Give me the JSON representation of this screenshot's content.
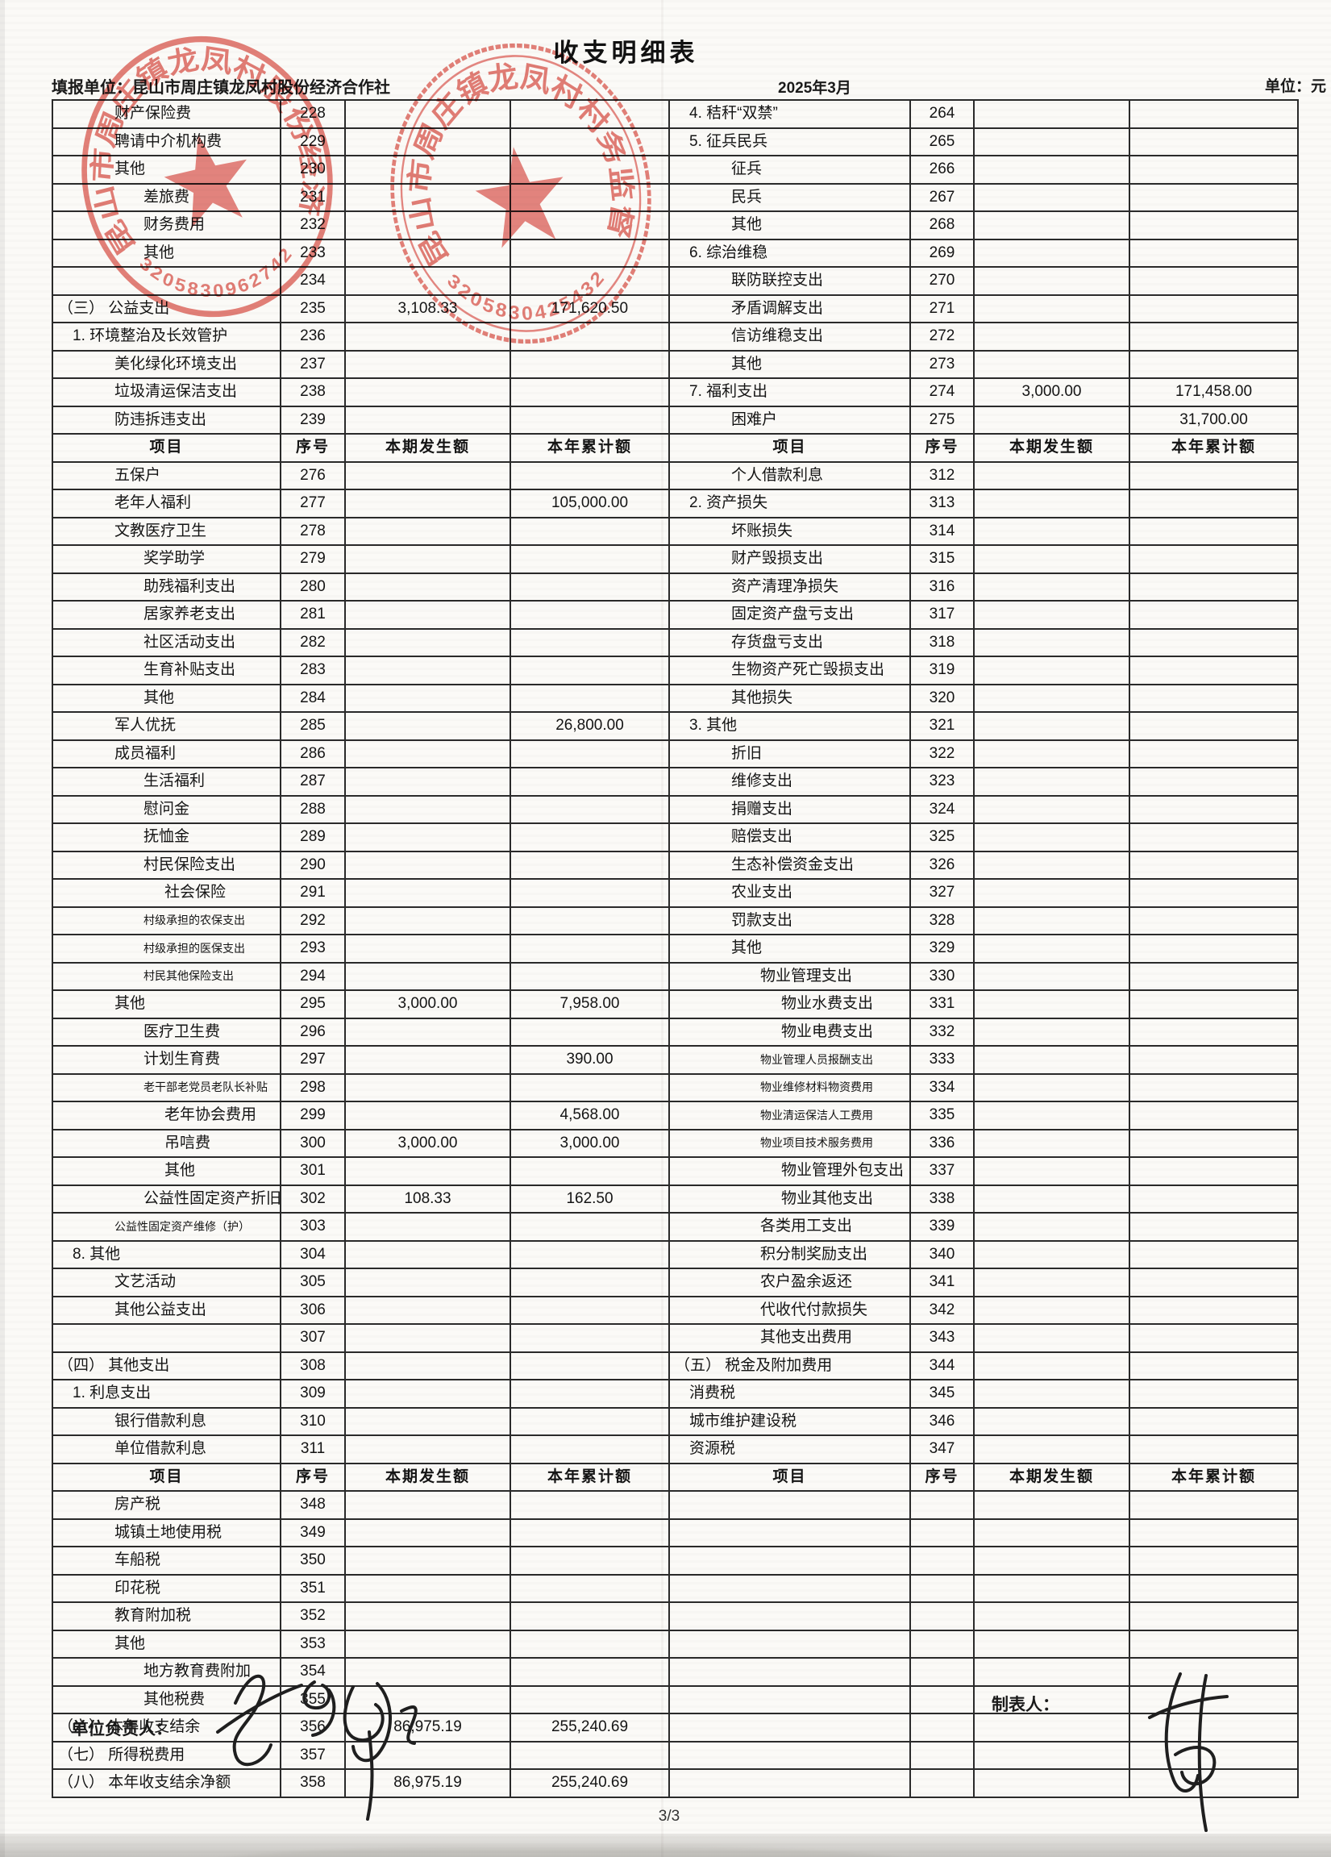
{
  "page": {
    "title": "收支明细表",
    "report_unit": "填报单位：昆山市周庄镇龙凤村股份经济合作社",
    "period": "2025年3月",
    "unit_label": "单位：元",
    "page_number": "3/3",
    "footer": {
      "manager_label": "单位负责人：",
      "preparer_label": "制表人："
    }
  },
  "table": {
    "col_headers": [
      "项目",
      "序号",
      "本期发生额",
      "本年累计额"
    ],
    "rows": [
      {
        "l": [
          "财产保险费",
          2,
          "228",
          "",
          ""
        ],
        "r": [
          "4. 秸秆“双禁”",
          1,
          "264",
          "",
          ""
        ]
      },
      {
        "l": [
          "聘请中介机构费",
          2,
          "229",
          "",
          ""
        ],
        "r": [
          "5. 征兵民兵",
          1,
          "265",
          "",
          ""
        ]
      },
      {
        "l": [
          "其他",
          2,
          "230",
          "",
          ""
        ],
        "r": [
          "征兵",
          2,
          "266",
          "",
          ""
        ]
      },
      {
        "l": [
          "差旅费",
          3,
          "231",
          "",
          ""
        ],
        "r": [
          "民兵",
          2,
          "267",
          "",
          ""
        ]
      },
      {
        "l": [
          "财务费用",
          3,
          "232",
          "",
          ""
        ],
        "r": [
          "其他",
          2,
          "268",
          "",
          ""
        ]
      },
      {
        "l": [
          "其他",
          3,
          "233",
          "",
          ""
        ],
        "r": [
          "6. 综治维稳",
          1,
          "269",
          "",
          ""
        ]
      },
      {
        "l": [
          "",
          0,
          "234",
          "",
          ""
        ],
        "r": [
          "联防联控支出",
          2,
          "270",
          "",
          ""
        ]
      },
      {
        "l": [
          "（三） 公益支出",
          0,
          "235",
          "3,108.33",
          "171,620.50"
        ],
        "r": [
          "矛盾调解支出",
          2,
          "271",
          "",
          ""
        ]
      },
      {
        "l": [
          "1. 环境整治及长效管护",
          1,
          "236",
          "",
          ""
        ],
        "r": [
          "信访维稳支出",
          2,
          "272",
          "",
          ""
        ]
      },
      {
        "l": [
          "美化绿化环境支出",
          2,
          "237",
          "",
          ""
        ],
        "r": [
          "其他",
          2,
          "273",
          "",
          ""
        ]
      },
      {
        "l": [
          "垃圾清运保洁支出",
          2,
          "238",
          "",
          ""
        ],
        "r": [
          "7. 福利支出",
          1,
          "274",
          "3,000.00",
          "171,458.00"
        ]
      },
      {
        "l": [
          "防违拆违支出",
          2,
          "239",
          "",
          ""
        ],
        "r": [
          "困难户",
          2,
          "275",
          "",
          "31,700.00"
        ]
      },
      {
        "h": 1
      },
      {
        "l": [
          "五保户",
          2,
          "276",
          "",
          ""
        ],
        "r": [
          "个人借款利息",
          2,
          "312",
          "",
          ""
        ]
      },
      {
        "l": [
          "老年人福利",
          2,
          "277",
          "",
          "105,000.00"
        ],
        "r": [
          "2. 资产损失",
          1,
          "313",
          "",
          ""
        ]
      },
      {
        "l": [
          "文教医疗卫生",
          2,
          "278",
          "",
          ""
        ],
        "r": [
          "坏账损失",
          2,
          "314",
          "",
          ""
        ]
      },
      {
        "l": [
          "奖学助学",
          3,
          "279",
          "",
          ""
        ],
        "r": [
          "财产毁损支出",
          2,
          "315",
          "",
          ""
        ]
      },
      {
        "l": [
          "助残福利支出",
          3,
          "280",
          "",
          ""
        ],
        "r": [
          "资产清理净损失",
          2,
          "316",
          "",
          ""
        ]
      },
      {
        "l": [
          "居家养老支出",
          3,
          "281",
          "",
          ""
        ],
        "r": [
          "固定资产盘亏支出",
          2,
          "317",
          "",
          ""
        ]
      },
      {
        "l": [
          "社区活动支出",
          3,
          "282",
          "",
          ""
        ],
        "r": [
          "存货盘亏支出",
          2,
          "318",
          "",
          ""
        ]
      },
      {
        "l": [
          "生育补贴支出",
          3,
          "283",
          "",
          ""
        ],
        "r": [
          "生物资产死亡毁损支出",
          2,
          "319",
          "",
          ""
        ]
      },
      {
        "l": [
          "其他",
          3,
          "284",
          "",
          ""
        ],
        "r": [
          "其他损失",
          2,
          "320",
          "",
          ""
        ]
      },
      {
        "l": [
          "军人优抚",
          2,
          "285",
          "",
          "26,800.00"
        ],
        "r": [
          "3. 其他",
          1,
          "321",
          "",
          ""
        ]
      },
      {
        "l": [
          "成员福利",
          2,
          "286",
          "",
          ""
        ],
        "r": [
          "折旧",
          2,
          "322",
          "",
          ""
        ]
      },
      {
        "l": [
          "生活福利",
          3,
          "287",
          "",
          ""
        ],
        "r": [
          "维修支出",
          2,
          "323",
          "",
          ""
        ]
      },
      {
        "l": [
          "慰问金",
          3,
          "288",
          "",
          ""
        ],
        "r": [
          "捐赠支出",
          2,
          "324",
          "",
          ""
        ]
      },
      {
        "l": [
          "抚恤金",
          3,
          "289",
          "",
          ""
        ],
        "r": [
          "赔偿支出",
          2,
          "325",
          "",
          ""
        ]
      },
      {
        "l": [
          "村民保险支出",
          3,
          "290",
          "",
          ""
        ],
        "r": [
          "生态补偿资金支出",
          2,
          "326",
          "",
          ""
        ]
      },
      {
        "l": [
          "社会保险",
          4,
          "291",
          "",
          ""
        ],
        "r": [
          "农业支出",
          2,
          "327",
          "",
          ""
        ]
      },
      {
        "l": [
          "村级承担的农保支出",
          3,
          "292",
          "",
          "",
          1
        ],
        "r": [
          "罚款支出",
          2,
          "328",
          "",
          ""
        ]
      },
      {
        "l": [
          "村级承担的医保支出",
          3,
          "293",
          "",
          "",
          1
        ],
        "r": [
          "其他",
          2,
          "329",
          "",
          ""
        ]
      },
      {
        "l": [
          "村民其他保险支出",
          3,
          "294",
          "",
          "",
          1
        ],
        "r": [
          "物业管理支出",
          3,
          "330",
          "",
          ""
        ]
      },
      {
        "l": [
          "其他",
          2,
          "295",
          "3,000.00",
          "7,958.00"
        ],
        "r": [
          "物业水费支出",
          4,
          "331",
          "",
          ""
        ]
      },
      {
        "l": [
          "医疗卫生费",
          3,
          "296",
          "",
          ""
        ],
        "r": [
          "物业电费支出",
          4,
          "332",
          "",
          ""
        ]
      },
      {
        "l": [
          "计划生育费",
          3,
          "297",
          "",
          "390.00"
        ],
        "r": [
          "物业管理人员报酬支出",
          3,
          "333",
          "",
          "",
          1
        ]
      },
      {
        "l": [
          "老干部老党员老队长补贴",
          3,
          "298",
          "",
          "",
          1
        ],
        "r": [
          "物业维修材料物资费用",
          3,
          "334",
          "",
          "",
          1
        ]
      },
      {
        "l": [
          "老年协会费用",
          4,
          "299",
          "",
          "4,568.00"
        ],
        "r": [
          "物业清运保洁人工费用",
          3,
          "335",
          "",
          "",
          1
        ]
      },
      {
        "l": [
          "吊唁费",
          4,
          "300",
          "3,000.00",
          "3,000.00"
        ],
        "r": [
          "物业项目技术服务费用",
          3,
          "336",
          "",
          "",
          1
        ]
      },
      {
        "l": [
          "其他",
          4,
          "301",
          "",
          ""
        ],
        "r": [
          "物业管理外包支出",
          4,
          "337",
          "",
          ""
        ]
      },
      {
        "l": [
          "公益性固定资产折旧",
          3,
          "302",
          "108.33",
          "162.50"
        ],
        "r": [
          "物业其他支出",
          4,
          "338",
          "",
          ""
        ]
      },
      {
        "l": [
          "公益性固定资产维修（护）",
          2,
          "303",
          "",
          "",
          1
        ],
        "r": [
          "各类用工支出",
          3,
          "339",
          "",
          ""
        ]
      },
      {
        "l": [
          "8. 其他",
          1,
          "304",
          "",
          ""
        ],
        "r": [
          "积分制奖励支出",
          3,
          "340",
          "",
          ""
        ]
      },
      {
        "l": [
          "文艺活动",
          2,
          "305",
          "",
          ""
        ],
        "r": [
          "农户盈余返还",
          3,
          "341",
          "",
          ""
        ]
      },
      {
        "l": [
          "其他公益支出",
          2,
          "306",
          "",
          ""
        ],
        "r": [
          "代收代付款损失",
          3,
          "342",
          "",
          ""
        ]
      },
      {
        "l": [
          "",
          0,
          "307",
          "",
          ""
        ],
        "r": [
          "其他支出费用",
          3,
          "343",
          "",
          ""
        ]
      },
      {
        "l": [
          "（四） 其他支出",
          0,
          "308",
          "",
          ""
        ],
        "r": [
          "（五） 税金及附加费用",
          0,
          "344",
          "",
          ""
        ]
      },
      {
        "l": [
          "1. 利息支出",
          1,
          "309",
          "",
          ""
        ],
        "r": [
          "消费税",
          1,
          "345",
          "",
          ""
        ]
      },
      {
        "l": [
          "银行借款利息",
          2,
          "310",
          "",
          ""
        ],
        "r": [
          "城市维护建设税",
          1,
          "346",
          "",
          ""
        ]
      },
      {
        "l": [
          "单位借款利息",
          2,
          "311",
          "",
          ""
        ],
        "r": [
          "资源税",
          1,
          "347",
          "",
          ""
        ]
      },
      {
        "h": 1
      },
      {
        "l": [
          "房产税",
          2,
          "348",
          "",
          ""
        ],
        "r": null
      },
      {
        "l": [
          "城镇土地使用税",
          2,
          "349",
          "",
          ""
        ],
        "r": null
      },
      {
        "l": [
          "车船税",
          2,
          "350",
          "",
          ""
        ],
        "r": null
      },
      {
        "l": [
          "印花税",
          2,
          "351",
          "",
          ""
        ],
        "r": null
      },
      {
        "l": [
          "教育附加税",
          2,
          "352",
          "",
          ""
        ],
        "r": null
      },
      {
        "l": [
          "其他",
          2,
          "353",
          "",
          ""
        ],
        "r": null
      },
      {
        "l": [
          "地方教育费附加",
          3,
          "354",
          "",
          ""
        ],
        "r": null
      },
      {
        "l": [
          "其他税费",
          3,
          "355",
          "",
          ""
        ],
        "r": null
      },
      {
        "l": [
          "（六） 本年收支结余",
          0,
          "356",
          "86,975.19",
          "255,240.69"
        ],
        "r": null
      },
      {
        "l": [
          "（七） 所得税费用",
          0,
          "357",
          "",
          ""
        ],
        "r": null
      },
      {
        "l": [
          "（八） 本年收支结余净额",
          0,
          "358",
          "86,975.19",
          "255,240.69"
        ],
        "r": null
      }
    ]
  },
  "stamps": [
    {
      "ring_text": "昆山市周庄镇龙凤村股份经济合作社",
      "serial": "3205830962742",
      "color": "#d94b42"
    },
    {
      "ring_text": "昆山市周庄镇龙凤村村务监督委员会",
      "serial": "3205830425432",
      "color": "#d94b42"
    }
  ]
}
